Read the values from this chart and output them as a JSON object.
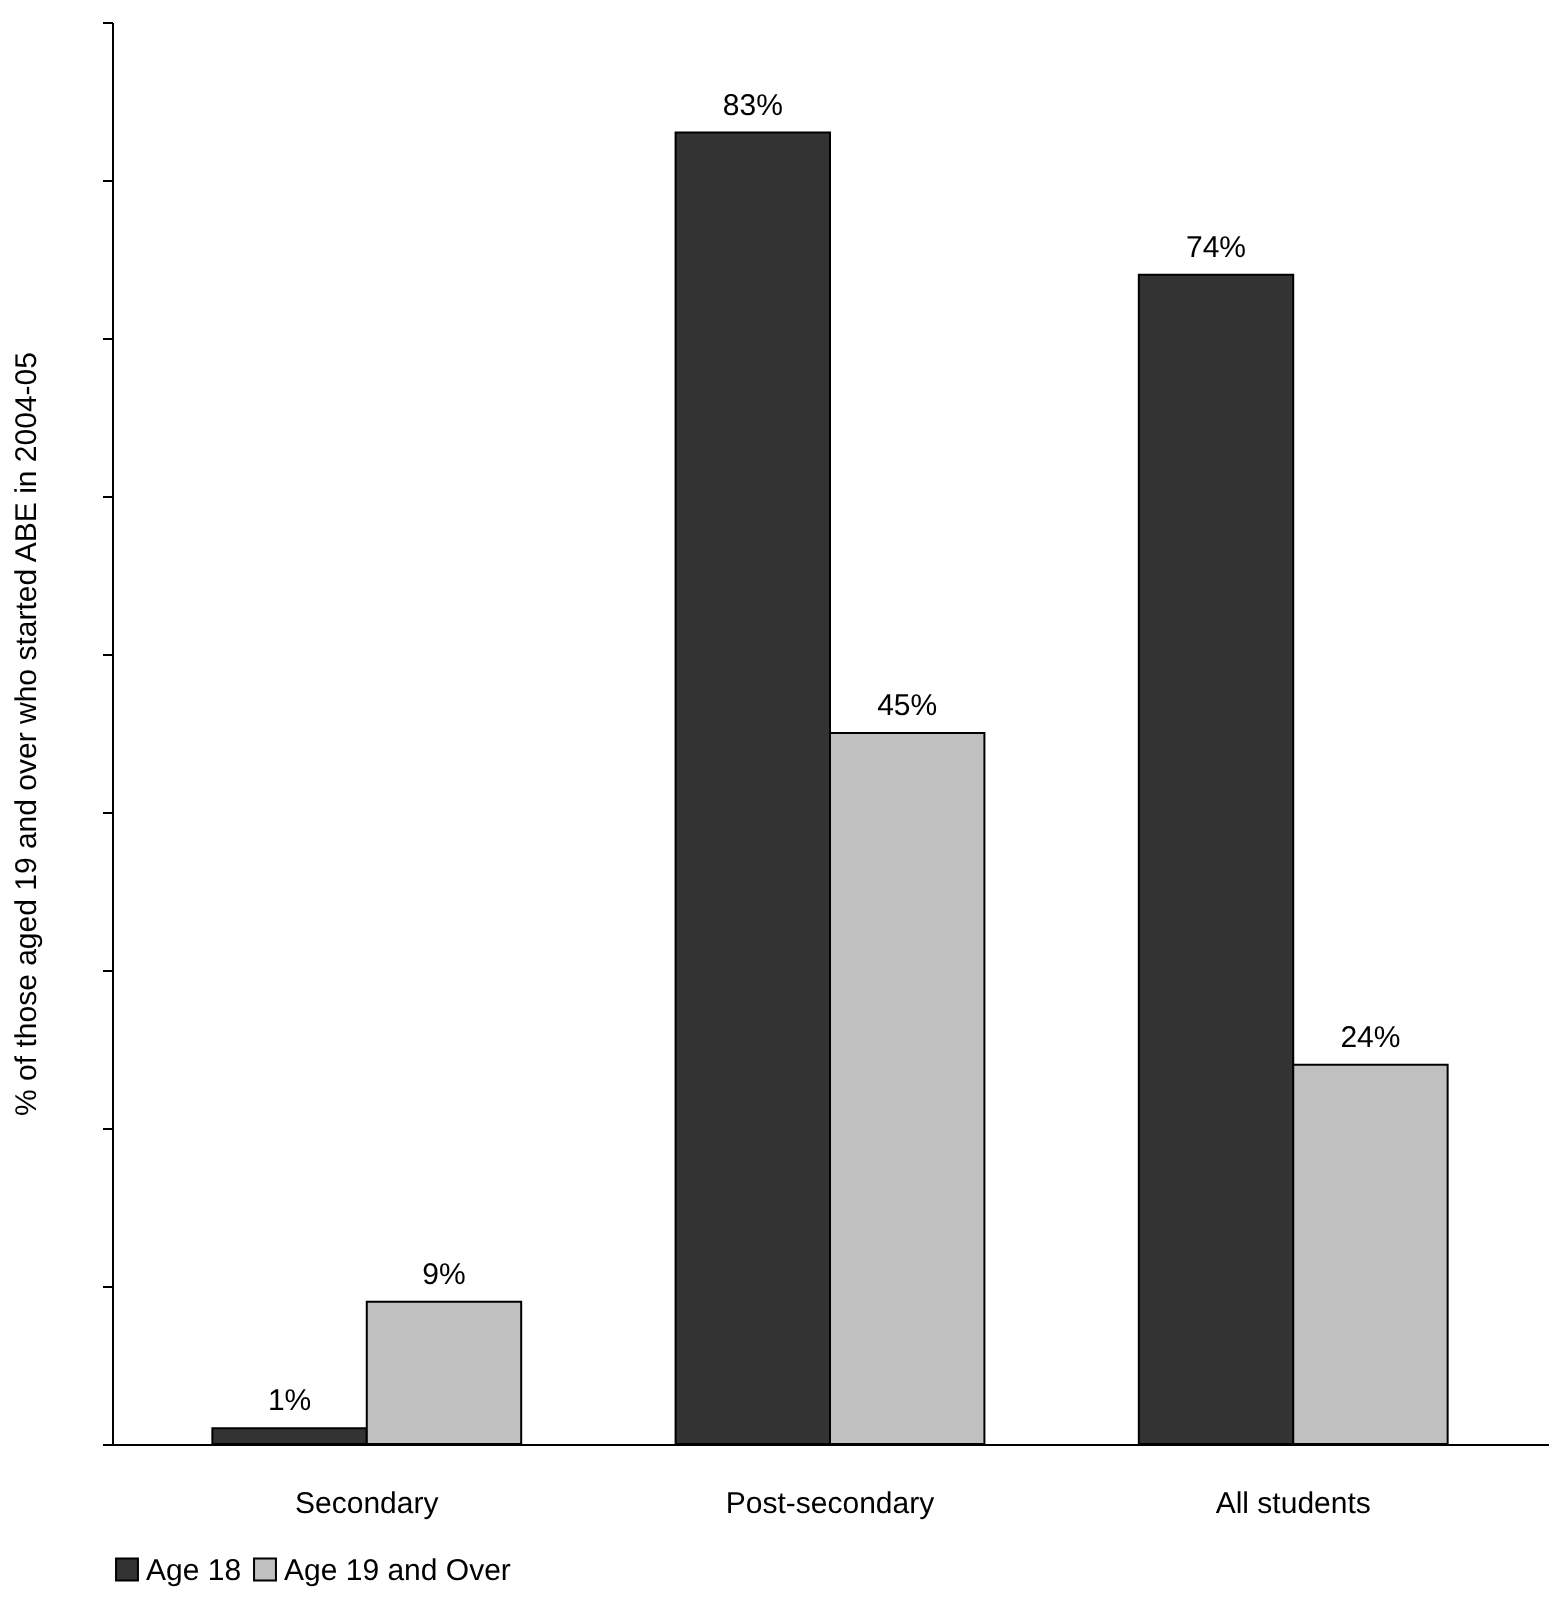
{
  "chart_data": {
    "type": "bar",
    "ylabel": "% of those aged 19 and over who started ABE in 2004-05",
    "categories": [
      "Secondary",
      "Post-secondary",
      "All students"
    ],
    "series": [
      {
        "name": "Age 18",
        "color": "#333333",
        "values": [
          1,
          83,
          74
        ],
        "value_labels": [
          "1%",
          "83%",
          "74%"
        ]
      },
      {
        "name": "Age 19 and Over",
        "color": "#c0c0c0",
        "values": [
          9,
          45,
          24
        ],
        "value_labels": [
          "9%",
          "45%",
          "24%"
        ]
      }
    ],
    "ylim": [
      0,
      90
    ],
    "yticks": [
      {
        "value": 0,
        "label": null
      },
      {
        "value": 10,
        "label": null
      },
      {
        "value": 20,
        "label": null
      },
      {
        "value": 30,
        "label": null
      },
      {
        "value": 40,
        "label": null
      },
      {
        "value": 50,
        "label": null
      },
      {
        "value": 60,
        "label": null
      },
      {
        "value": 70,
        "label": null
      },
      {
        "value": 80,
        "label": null
      },
      {
        "value": 90,
        "label": null
      }
    ],
    "tick_labels": "x",
    "grid": false,
    "legend": "bottom"
  }
}
